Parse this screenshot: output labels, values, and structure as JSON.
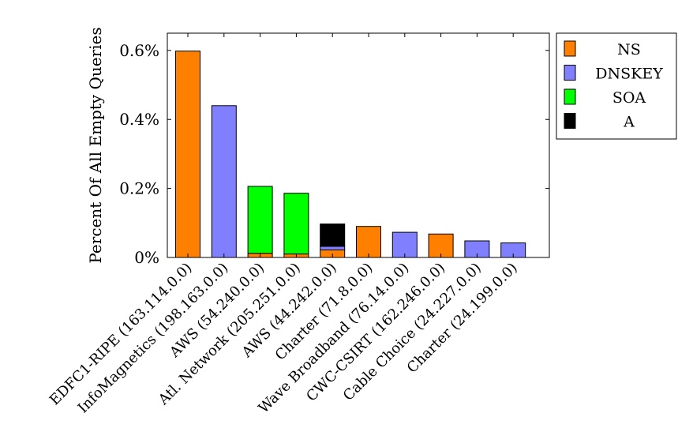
{
  "chart_data": {
    "type": "bar",
    "stacked": true,
    "title": "",
    "xlabel": "",
    "ylabel": "Percent Of All Empty Queries",
    "ylim": [
      0,
      0.65
    ],
    "yticks": [
      0,
      0.2,
      0.4,
      0.6
    ],
    "ytick_labels": [
      "0%",
      "0.2%",
      "0.4%",
      "0.6%"
    ],
    "grid": false,
    "legend_position": "outside-right-top",
    "categories": [
      "EDFC1-RIPE (163.114.0.0)",
      "InfoMagnetics (198.163.0.0)",
      "AWS (54.240.0.0)",
      "Atl. Network (205.251.0.0)",
      "AWS (44.242.0.0)",
      "Charter (71.8.0.0)",
      "Wave Broadband (76.14.0.0)",
      "CWC-CSIRT (162.246.0.0)",
      "Cable Choice (24.227.0.0)",
      "Charter (24.199.0.0)"
    ],
    "series": [
      {
        "name": "NS",
        "color": "#ff8000",
        "values": [
          0.598,
          0,
          0.012,
          0.01,
          0.022,
          0.09,
          0,
          0.068,
          0,
          0
        ]
      },
      {
        "name": "DNSKEY",
        "color": "#8080ff",
        "values": [
          0,
          0.44,
          0,
          0,
          0.01,
          0,
          0.073,
          0,
          0.048,
          0.042
        ]
      },
      {
        "name": "SOA",
        "color": "#00ff00",
        "values": [
          0,
          0,
          0.194,
          0.176,
          0,
          0,
          0,
          0,
          0,
          0
        ]
      },
      {
        "name": "A",
        "color": "#000000",
        "values": [
          0,
          0,
          0,
          0,
          0.065,
          0,
          0,
          0,
          0,
          0
        ]
      }
    ]
  }
}
